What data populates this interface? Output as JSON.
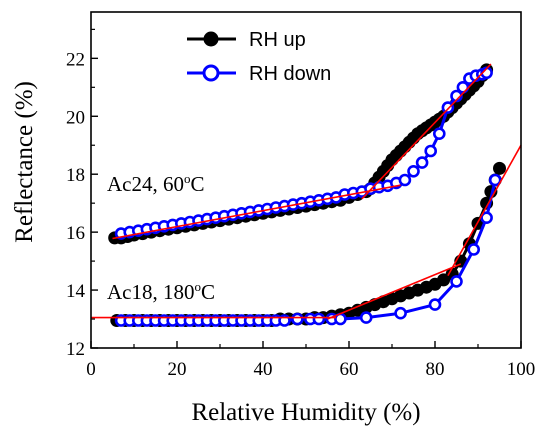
{
  "chart_data": {
    "type": "scatter",
    "xlabel": "Relative Humidity (%)",
    "ylabel": "Reflectance (%)",
    "xlim": [
      0,
      100
    ],
    "ylim": [
      12,
      23.6
    ],
    "xticks": [
      0,
      20,
      40,
      60,
      80,
      100
    ],
    "yticks": [
      12,
      14,
      16,
      18,
      20,
      22
    ],
    "grid": false,
    "legend_position": "top-center",
    "colors": {
      "rh_up": "#000000",
      "rh_down": "#0000ff",
      "fit": "#ff0000"
    },
    "annotations": [
      {
        "text": "Ac24, 60",
        "sup": "o",
        "suffix": "C",
        "anchor": [
          3.5,
          17.3
        ]
      },
      {
        "text": "Ac18, 180",
        "sup": "o",
        "suffix": "C",
        "anchor": [
          3.5,
          13.6
        ]
      }
    ],
    "series": [
      {
        "name": "RH up",
        "group": "Ac24, 60°C",
        "marker": "filled-circle",
        "color": "#000000",
        "x": [
          5.5,
          7,
          8.5,
          10,
          12,
          14,
          16,
          18,
          20,
          22,
          24,
          26,
          28,
          30,
          32,
          34,
          36,
          38,
          40,
          42,
          44,
          46,
          48,
          50,
          52,
          54,
          56,
          58,
          60,
          62,
          64,
          65,
          66,
          67,
          68,
          69,
          70,
          71,
          72,
          73,
          74,
          75,
          76,
          77,
          78,
          79,
          80,
          81,
          82,
          83,
          84,
          85,
          86,
          87,
          88,
          89,
          90,
          91,
          92
        ],
        "y": [
          15.8,
          15.8,
          15.85,
          15.9,
          15.95,
          16.0,
          16.05,
          16.1,
          16.15,
          16.2,
          16.25,
          16.3,
          16.35,
          16.4,
          16.45,
          16.5,
          16.55,
          16.6,
          16.65,
          16.7,
          16.75,
          16.8,
          16.85,
          16.9,
          16.95,
          17.0,
          17.05,
          17.1,
          17.2,
          17.3,
          17.4,
          17.5,
          17.7,
          17.9,
          18.1,
          18.3,
          18.5,
          18.65,
          18.8,
          18.95,
          19.1,
          19.25,
          19.4,
          19.5,
          19.6,
          19.7,
          19.8,
          19.9,
          20.0,
          20.15,
          20.3,
          20.45,
          20.6,
          20.75,
          20.9,
          21.05,
          21.2,
          21.4,
          21.6
        ]
      },
      {
        "name": "RH down",
        "group": "Ac24, 60°C",
        "marker": "open-circle",
        "color": "#0000ff",
        "x": [
          7,
          9,
          11,
          13,
          15,
          17,
          19,
          21,
          23,
          25,
          27,
          29,
          31,
          33,
          35,
          37,
          39,
          41,
          43,
          45,
          47,
          49,
          51,
          53,
          55,
          57,
          59,
          61,
          63,
          65,
          67,
          69,
          71,
          73,
          75,
          77,
          79,
          81,
          83,
          85,
          86.5,
          88,
          89.5,
          91,
          92
        ],
        "y": [
          15.95,
          16.0,
          16.05,
          16.1,
          16.15,
          16.2,
          16.25,
          16.3,
          16.35,
          16.4,
          16.45,
          16.5,
          16.55,
          16.6,
          16.65,
          16.7,
          16.75,
          16.8,
          16.85,
          16.9,
          16.95,
          17.0,
          17.05,
          17.1,
          17.15,
          17.2,
          17.3,
          17.35,
          17.4,
          17.5,
          17.55,
          17.6,
          17.7,
          17.8,
          18.1,
          18.4,
          18.8,
          19.4,
          20.3,
          20.7,
          21.0,
          21.3,
          21.4,
          21.45,
          21.5
        ]
      },
      {
        "name": "",
        "group": "Ac24, 60°C",
        "marker": "none",
        "color": "#ff0000",
        "x": [
          5,
          72
        ],
        "y": [
          15.78,
          17.62
        ]
      },
      {
        "name": "",
        "group": "Ac24, 60°C",
        "marker": "none",
        "color": "#ff0000",
        "x": [
          63,
          93
        ],
        "y": [
          17.15,
          21.8
        ]
      },
      {
        "name": "RH up",
        "group": "Ac18, 180°C",
        "marker": "filled-circle",
        "color": "#000000",
        "x": [
          6,
          8,
          10,
          12,
          14,
          16,
          18,
          20,
          22,
          24,
          26,
          28,
          30,
          32,
          34,
          36,
          38,
          40,
          42,
          44,
          46,
          48,
          50,
          52,
          54,
          56,
          58,
          60,
          62,
          64,
          66,
          68,
          70,
          72,
          74,
          76,
          78,
          80,
          82,
          84,
          86,
          88,
          90,
          92,
          93,
          94,
          95
        ],
        "y": [
          12.95,
          12.95,
          12.95,
          12.95,
          12.95,
          12.95,
          12.95,
          12.95,
          12.95,
          12.95,
          12.95,
          12.95,
          12.95,
          12.95,
          12.95,
          12.95,
          12.95,
          12.95,
          12.95,
          13.0,
          13.0,
          13.0,
          13.0,
          13.05,
          13.05,
          13.1,
          13.15,
          13.2,
          13.3,
          13.4,
          13.5,
          13.6,
          13.7,
          13.8,
          13.9,
          14.0,
          14.1,
          14.2,
          14.35,
          14.55,
          15.0,
          15.6,
          16.3,
          17.0,
          17.4,
          17.8,
          18.2
        ]
      },
      {
        "name": "RH down",
        "group": "Ac18, 180°C",
        "marker": "open-circle",
        "color": "#0000ff",
        "x": [
          7,
          9,
          11,
          13,
          15,
          17,
          19,
          21,
          23,
          25,
          27,
          29,
          31,
          33,
          35,
          37,
          39,
          41,
          43,
          45,
          48,
          51,
          53,
          56,
          58,
          64,
          72,
          80,
          85,
          89,
          92,
          94
        ],
        "y": [
          12.95,
          12.95,
          12.95,
          12.95,
          12.95,
          12.95,
          12.95,
          12.95,
          12.95,
          12.95,
          12.95,
          12.95,
          12.95,
          12.95,
          12.95,
          12.95,
          12.95,
          12.95,
          12.95,
          12.95,
          13.0,
          13.0,
          13.0,
          13.0,
          13.0,
          13.05,
          13.2,
          13.5,
          14.3,
          15.4,
          16.5,
          17.8
        ]
      },
      {
        "name": "",
        "group": "Ac18, 180°C",
        "marker": "none",
        "color": "#ff0000",
        "x": [
          0,
          57
        ],
        "y": [
          13.05,
          13.05
        ]
      },
      {
        "name": "",
        "group": "Ac18, 180°C",
        "marker": "none",
        "color": "#ff0000",
        "x": [
          55,
          86
        ],
        "y": [
          13.0,
          14.9
        ]
      },
      {
        "name": "",
        "group": "Ac18, 180°C",
        "marker": "none",
        "color": "#ff0000",
        "x": [
          83,
          100
        ],
        "y": [
          14.5,
          19.0
        ]
      }
    ]
  }
}
